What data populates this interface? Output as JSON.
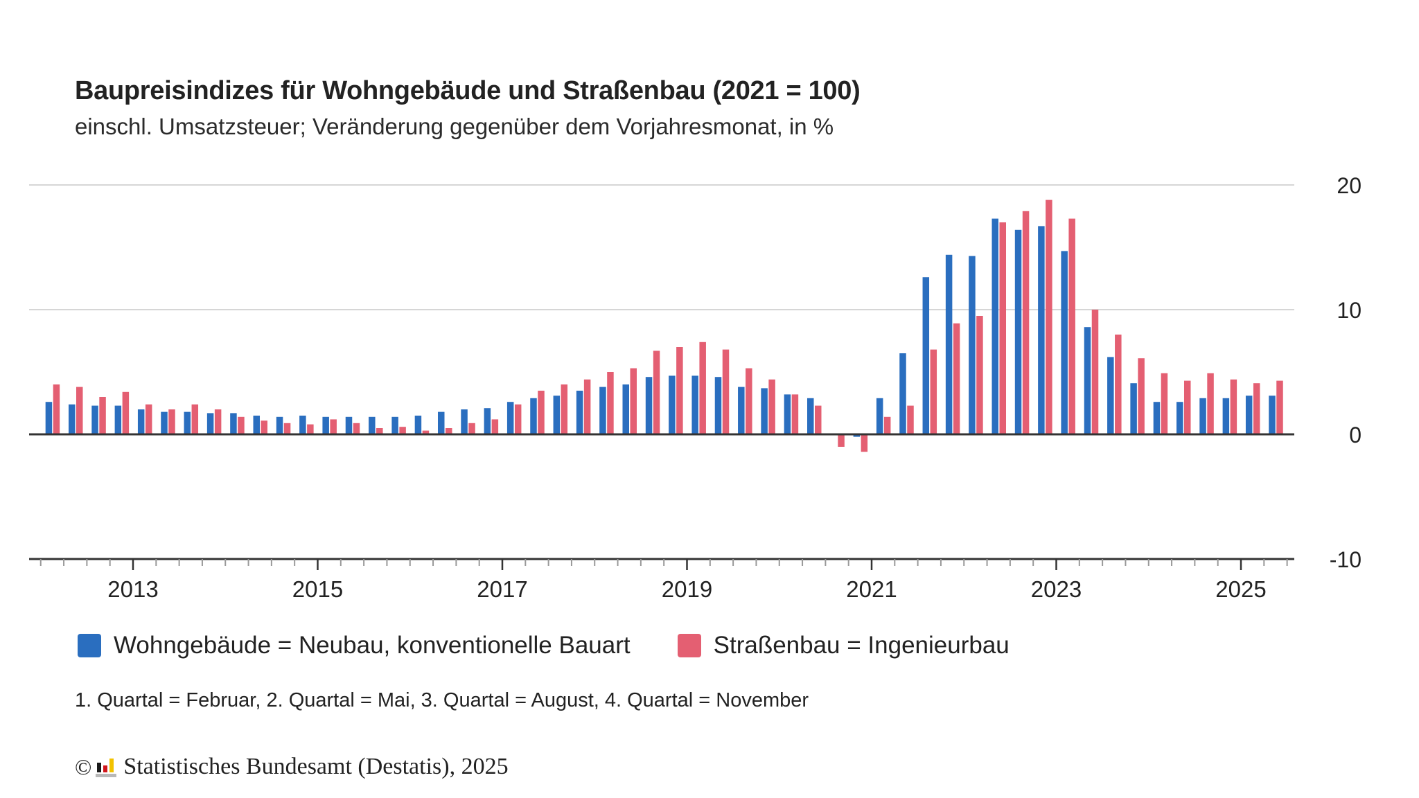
{
  "header": {
    "title": "Baupreisindizes für Wohngebäude und Straßenbau (2021 = 100)",
    "subtitle": "einschl. Umsatzsteuer; Veränderung gegenüber dem Vorjahresmonat, in %"
  },
  "legend": {
    "items": [
      {
        "label": "Wohngebäude = Neubau, konventionelle Bauart",
        "color": "#2a6ebf"
      },
      {
        "label": "Straßenbau = Ingenieurbau",
        "color": "#e45f72"
      }
    ]
  },
  "note": "1. Quartal = Februar, 2. Quartal = Mai, 3. Quartal = August, 4. Quartal = November",
  "footer": {
    "copyright_symbol": "©",
    "source": "Statistisches Bundesamt (Destatis), 2025"
  },
  "chart_data": {
    "type": "bar",
    "title": "Baupreisindizes für Wohngebäude und Straßenbau (2021 = 100)",
    "subtitle": "einschl. Umsatzsteuer; Veränderung gegenüber dem Vorjahresmonat, in %",
    "xlabel": "",
    "ylabel": "",
    "ylim": [
      -10,
      20
    ],
    "yticks": [
      20,
      10,
      0,
      -10
    ],
    "y_axis_side": "right",
    "grid": true,
    "x_tick_labels": [
      "2013",
      "2015",
      "2017",
      "2019",
      "2021",
      "2023",
      "2025"
    ],
    "x_range": [
      "2011-11",
      "2025-08"
    ],
    "legend_position": "bottom-left",
    "categories": [
      "2012 Q1",
      "2012 Q2",
      "2012 Q3",
      "2012 Q4",
      "2013 Q1",
      "2013 Q2",
      "2013 Q3",
      "2013 Q4",
      "2014 Q1",
      "2014 Q2",
      "2014 Q3",
      "2014 Q4",
      "2015 Q1",
      "2015 Q2",
      "2015 Q3",
      "2015 Q4",
      "2016 Q1",
      "2016 Q2",
      "2016 Q3",
      "2016 Q4",
      "2017 Q1",
      "2017 Q2",
      "2017 Q3",
      "2017 Q4",
      "2018 Q1",
      "2018 Q2",
      "2018 Q3",
      "2018 Q4",
      "2019 Q1",
      "2019 Q2",
      "2019 Q3",
      "2019 Q4",
      "2020 Q1",
      "2020 Q2",
      "2020 Q3",
      "2020 Q4",
      "2021 Q1",
      "2021 Q2",
      "2021 Q3",
      "2021 Q4",
      "2022 Q1",
      "2022 Q2",
      "2022 Q3",
      "2022 Q4",
      "2023 Q1",
      "2023 Q2",
      "2023 Q3",
      "2023 Q4",
      "2024 Q1",
      "2024 Q2",
      "2024 Q3",
      "2024 Q4",
      "2025 Q1",
      "2025 Q2"
    ],
    "series": [
      {
        "name": "Wohngebäude = Neubau, konventionelle Bauart",
        "color": "#2a6ebf",
        "values": [
          2.6,
          2.4,
          2.3,
          2.3,
          2.0,
          1.8,
          1.8,
          1.7,
          1.7,
          1.5,
          1.4,
          1.5,
          1.4,
          1.4,
          1.4,
          1.4,
          1.5,
          1.8,
          2.0,
          2.1,
          2.6,
          2.9,
          3.1,
          3.5,
          3.8,
          4.0,
          4.6,
          4.7,
          4.7,
          4.6,
          3.8,
          3.7,
          3.2,
          2.9,
          0.0,
          -0.2,
          2.9,
          6.5,
          12.6,
          14.4,
          14.3,
          17.3,
          16.4,
          16.7,
          14.7,
          8.6,
          6.2,
          4.1,
          2.6,
          2.6,
          2.9,
          2.9,
          3.1,
          3.1
        ]
      },
      {
        "name": "Straßenbau = Ingenieurbau",
        "color": "#e45f72",
        "values": [
          4.0,
          3.8,
          3.0,
          3.4,
          2.4,
          2.0,
          2.4,
          2.0,
          1.4,
          1.1,
          0.9,
          0.8,
          1.2,
          0.9,
          0.5,
          0.6,
          0.3,
          0.5,
          0.9,
          1.2,
          2.4,
          3.5,
          4.0,
          4.4,
          5.0,
          5.3,
          6.7,
          7.0,
          7.4,
          6.8,
          5.3,
          4.4,
          3.2,
          2.3,
          -1.0,
          -1.4,
          1.4,
          2.3,
          6.8,
          8.9,
          9.5,
          17.0,
          17.9,
          18.8,
          17.3,
          10.0,
          8.0,
          6.1,
          4.9,
          4.3,
          4.9,
          4.4,
          4.1,
          4.3
        ]
      }
    ]
  }
}
